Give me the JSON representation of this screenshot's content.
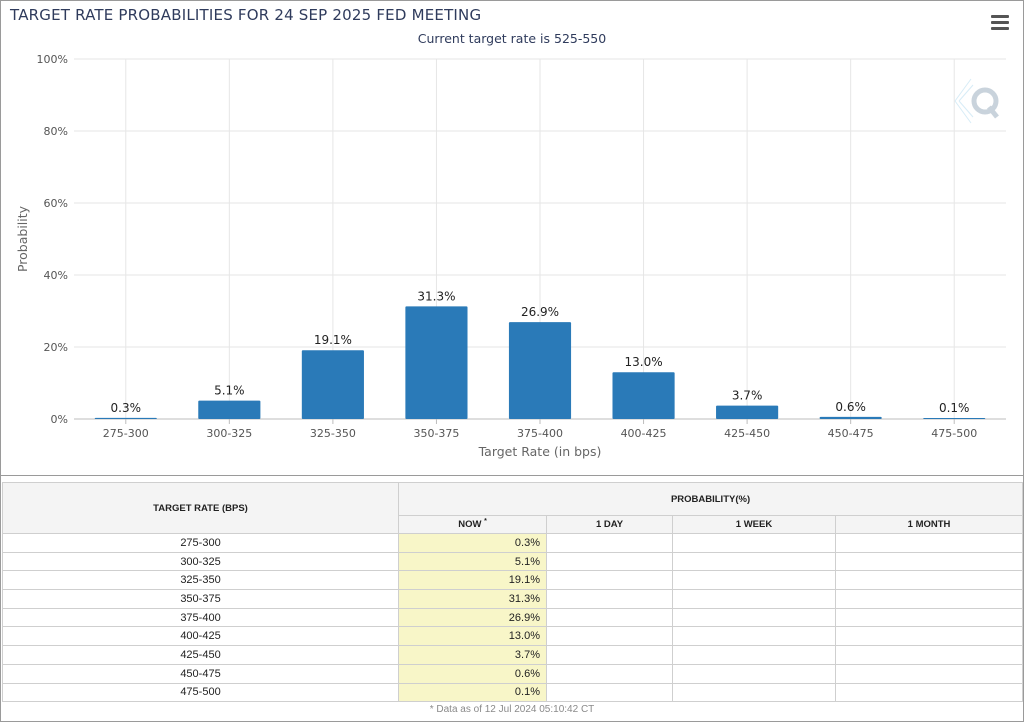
{
  "header": {
    "title": "TARGET RATE PROBABILITIES FOR 24 SEP 2025 FED MEETING",
    "subtitle": "Current target rate is 525-550"
  },
  "chart_data": {
    "type": "bar",
    "categories": [
      "275-300",
      "300-325",
      "325-350",
      "350-375",
      "375-400",
      "400-425",
      "425-450",
      "450-475",
      "475-500"
    ],
    "values": [
      0.3,
      5.1,
      19.1,
      31.3,
      26.9,
      13.0,
      3.7,
      0.6,
      0.1
    ],
    "data_labels": [
      "0.3%",
      "5.1%",
      "19.1%",
      "31.3%",
      "26.9%",
      "13.0%",
      "3.7%",
      "0.6%",
      "0.1%"
    ],
    "xlabel": "Target Rate (in bps)",
    "ylabel": "Probability",
    "ylim": [
      0,
      100
    ],
    "yticks": [
      0,
      20,
      40,
      60,
      80,
      100
    ],
    "ytick_labels": [
      "0%",
      "20%",
      "40%",
      "60%",
      "80%",
      "100%"
    ],
    "grid": true,
    "bar_color": "#2a7ab8"
  },
  "table": {
    "col_rate_header": "TARGET RATE (BPS)",
    "prob_header": "PROBABILITY(%)",
    "sub_headers": [
      "NOW",
      "1 DAY",
      "1 WEEK",
      "1 MONTH"
    ],
    "now_marker": "*",
    "rows": [
      {
        "rate": "275-300",
        "now": "0.3%"
      },
      {
        "rate": "300-325",
        "now": "5.1%"
      },
      {
        "rate": "325-350",
        "now": "19.1%"
      },
      {
        "rate": "350-375",
        "now": "31.3%"
      },
      {
        "rate": "375-400",
        "now": "26.9%"
      },
      {
        "rate": "400-425",
        "now": "13.0%"
      },
      {
        "rate": "425-450",
        "now": "3.7%"
      },
      {
        "rate": "450-475",
        "now": "0.6%"
      },
      {
        "rate": "475-500",
        "now": "0.1%"
      }
    ],
    "footnote": "* Data as of 12 Jul 2024 05:10:42 CT"
  },
  "icons": {
    "menu": "hamburger-menu-icon",
    "logo": "q-logo-icon"
  }
}
